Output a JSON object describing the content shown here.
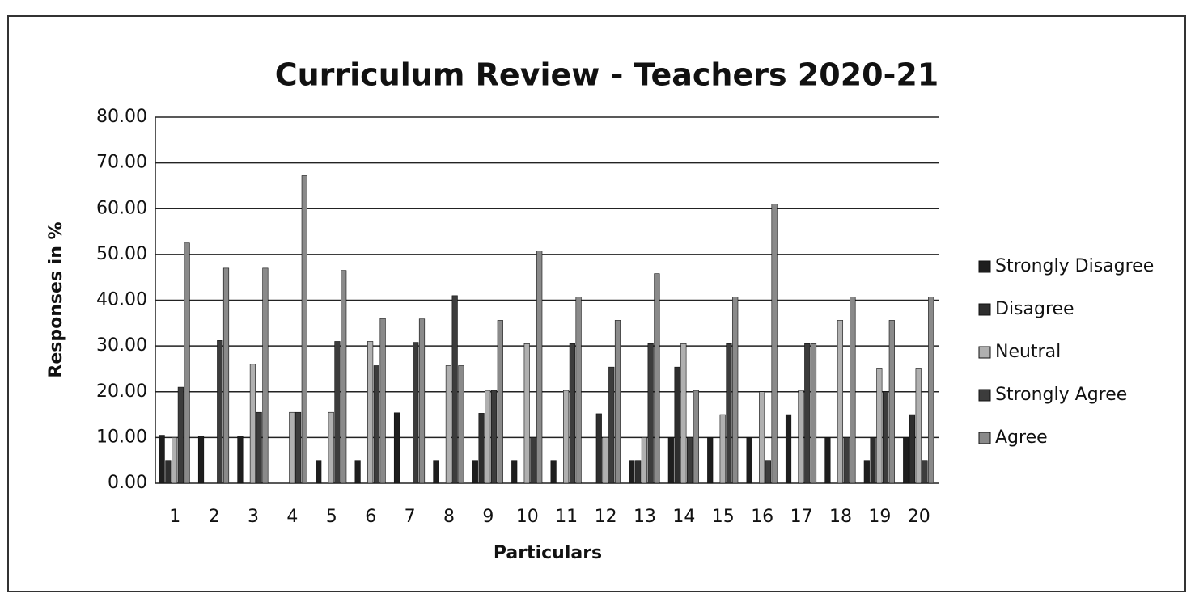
{
  "chart_data": {
    "type": "bar",
    "title": "Curriculum Review - Teachers 2020-21",
    "xlabel": "Particulars",
    "ylabel": "Responses in %",
    "categories": [
      "1",
      "2",
      "3",
      "4",
      "5",
      "6",
      "7",
      "8",
      "9",
      "10",
      "11",
      "12",
      "13",
      "14",
      "15",
      "16",
      "17",
      "18",
      "19",
      "20"
    ],
    "series": [
      {
        "name": "Strongly Disagree",
        "color": "#1e1e1e",
        "values": [
          10.5,
          10.3,
          10.3,
          0,
          5,
          5,
          15.4,
          5,
          5,
          5,
          5,
          0,
          5,
          10,
          10,
          10,
          15,
          10,
          5,
          10
        ]
      },
      {
        "name": "Disagree",
        "color": "#2e2e2e",
        "values": [
          5,
          0,
          0,
          0,
          0,
          0,
          0,
          0,
          15.3,
          0,
          0,
          15.2,
          5,
          25.4,
          0,
          0,
          0,
          0,
          10,
          15
        ]
      },
      {
        "name": "Neutral",
        "color": "#b0b0b0",
        "values": [
          10,
          0,
          26,
          15.5,
          15.5,
          31,
          0,
          25.7,
          20.3,
          30.5,
          20.3,
          10,
          10,
          30.5,
          15,
          20,
          20.3,
          35.6,
          25,
          25
        ]
      },
      {
        "name": "Strongly Agree",
        "color": "#3c3c3c",
        "values": [
          21,
          31.2,
          15.5,
          15.5,
          31,
          25.7,
          30.8,
          41,
          20.3,
          10,
          30.5,
          25.4,
          30.5,
          10,
          30.5,
          5,
          30.5,
          10,
          20,
          5
        ]
      },
      {
        "name": "Agree",
        "color": "#8a8a8a",
        "values": [
          52.5,
          47,
          47,
          67.2,
          46.5,
          36,
          35.9,
          25.7,
          35.6,
          50.8,
          40.7,
          35.6,
          45.8,
          20.3,
          40.7,
          61,
          30.5,
          40.7,
          35.6,
          40.7
        ]
      }
    ],
    "ylim": [
      0,
      80
    ],
    "yticks": [
      {
        "value": 0,
        "label": "0.00"
      },
      {
        "value": 10,
        "label": "10.00"
      },
      {
        "value": 20,
        "label": "20.00"
      },
      {
        "value": 30,
        "label": "30.00"
      },
      {
        "value": 40,
        "label": "40.00"
      },
      {
        "value": 50,
        "label": "50.00"
      },
      {
        "value": 60,
        "label": "60.00"
      },
      {
        "value": 70,
        "label": "70.00"
      },
      {
        "value": 80,
        "label": "80.00"
      }
    ],
    "grid": true,
    "legend": "right"
  }
}
